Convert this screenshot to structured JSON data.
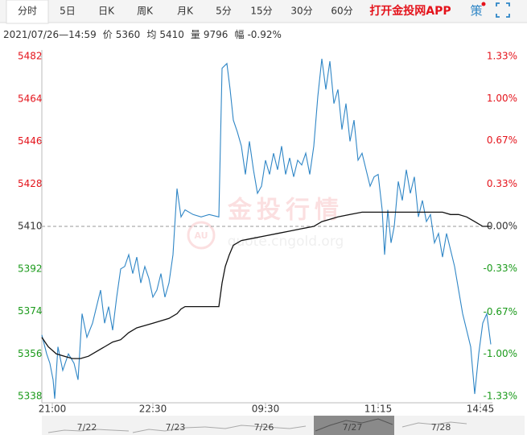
{
  "header": {
    "tabs": [
      "分时",
      "5日",
      "日K",
      "周K",
      "月K",
      "5分",
      "15分",
      "30分",
      "60分"
    ],
    "app_link": "打开金投网APP",
    "strategy": "策"
  },
  "info": {
    "datetime": "2021/07/26—14:59",
    "price_label": "价",
    "price": 5360,
    "avg_label": "均",
    "avg": 5410,
    "volume_label": "量",
    "volume": 9796,
    "change_label": "幅",
    "change": "-0.92%"
  },
  "watermark": {
    "title": "金投行情",
    "url": "quote.cngold.org",
    "logo": "AU"
  },
  "chart_data": {
    "type": "line",
    "xlim": [
      0,
      560
    ],
    "xticks": [
      {
        "value": 13,
        "label": "21:00"
      },
      {
        "value": 138,
        "label": "22:30"
      },
      {
        "value": 278,
        "label": "09:30"
      },
      {
        "value": 418,
        "label": "11:15"
      },
      {
        "value": 545,
        "label": "14:45"
      }
    ],
    "ylim": [
      5338,
      5482
    ],
    "yticks": [
      5338,
      5356,
      5374,
      5392,
      5410,
      5428,
      5446,
      5464,
      5482
    ],
    "y2lim": [
      -1.33,
      1.33
    ],
    "y2ticks": [
      {
        "value": -1.33,
        "label": "-1.33%"
      },
      {
        "value": -1.0,
        "label": "-1.00%"
      },
      {
        "value": -0.67,
        "label": "-0.67%"
      },
      {
        "value": -0.33,
        "label": "-0.33%"
      },
      {
        "value": 0,
        "label": "0.00%"
      },
      {
        "value": 0.33,
        "label": "0.33%"
      },
      {
        "value": 0.67,
        "label": "0.67%"
      },
      {
        "value": 1.0,
        "label": "1.00%"
      },
      {
        "value": 1.33,
        "label": "1.33%"
      }
    ],
    "baseline": 5410,
    "up_color": "#e4131b",
    "down_color": "#1a9a1a",
    "flat_color": "#333333",
    "series": [
      {
        "name": "价",
        "color": "#2f86c6",
        "x": [
          0,
          6,
          10,
          14,
          16,
          20,
          26,
          33,
          40,
          45,
          50,
          56,
          63,
          68,
          73,
          78,
          83,
          88,
          93,
          98,
          103,
          108,
          113,
          118,
          123,
          128,
          133,
          138,
          143,
          148,
          153,
          158,
          163,
          168,
          173,
          178,
          188,
          198,
          208,
          220,
          224,
          230,
          234,
          238,
          243,
          248,
          253,
          258,
          263,
          268,
          273,
          278,
          283,
          288,
          293,
          298,
          303,
          308,
          313,
          318,
          323,
          328,
          333,
          338,
          343,
          348,
          353,
          358,
          363,
          368,
          373,
          378,
          383,
          388,
          393,
          398,
          403,
          408,
          413,
          418,
          423,
          426,
          430,
          434,
          438,
          443,
          448,
          453,
          458,
          463,
          468,
          473,
          478,
          483,
          488,
          493,
          498,
          503,
          508,
          513,
          518,
          523,
          528,
          533,
          538,
          543,
          548,
          553,
          558
        ],
        "values": [
          5364,
          5356,
          5352,
          5345,
          5337,
          5359,
          5349,
          5356,
          5352,
          5345,
          5373,
          5363,
          5369,
          5376,
          5383,
          5369,
          5376,
          5366,
          5380,
          5392,
          5393,
          5398,
          5390,
          5397,
          5386,
          5393,
          5388,
          5380,
          5383,
          5390,
          5380,
          5386,
          5398,
          5426,
          5414,
          5417,
          5415,
          5414,
          5415,
          5414,
          5477,
          5479,
          5468,
          5455,
          5450,
          5444,
          5432,
          5446,
          5434,
          5424,
          5427,
          5438,
          5432,
          5441,
          5434,
          5444,
          5432,
          5439,
          5431,
          5438,
          5436,
          5441,
          5432,
          5444,
          5465,
          5481,
          5468,
          5480,
          5462,
          5468,
          5451,
          5462,
          5446,
          5455,
          5438,
          5441,
          5434,
          5427,
          5431,
          5432,
          5417,
          5398,
          5417,
          5403,
          5410,
          5429,
          5421,
          5434,
          5424,
          5431,
          5414,
          5421,
          5412,
          5415,
          5403,
          5407,
          5397,
          5407,
          5400,
          5393,
          5383,
          5373,
          5366,
          5359,
          5339,
          5356,
          5369,
          5373,
          5360
        ]
      },
      {
        "name": "均",
        "color": "#111111",
        "x": [
          0,
          8,
          18,
          28,
          38,
          48,
          58,
          68,
          78,
          88,
          98,
          108,
          118,
          128,
          138,
          148,
          158,
          168,
          173,
          178,
          220,
          224,
          228,
          233,
          238,
          248,
          263,
          278,
          293,
          308,
          323,
          338,
          343,
          348,
          358,
          368,
          383,
          398,
          418,
          438,
          458,
          478,
          498,
          508,
          518,
          528,
          538,
          548,
          558
        ],
        "values": [
          5363,
          5359,
          5356,
          5355,
          5354,
          5354,
          5355,
          5357,
          5359,
          5361,
          5362,
          5365,
          5367,
          5368,
          5369,
          5370,
          5371,
          5373,
          5375,
          5376,
          5376,
          5386,
          5393,
          5398,
          5402,
          5404,
          5405,
          5406,
          5407,
          5408,
          5409,
          5410,
          5411,
          5412,
          5413,
          5414,
          5415,
          5416,
          5416,
          5416,
          5416,
          5416,
          5416,
          5415,
          5415,
          5414,
          5412,
          5410,
          5410
        ]
      }
    ]
  },
  "navigator": {
    "labels": [
      "7/22",
      "7/23",
      "7/26",
      "7/27",
      "7/28"
    ]
  }
}
